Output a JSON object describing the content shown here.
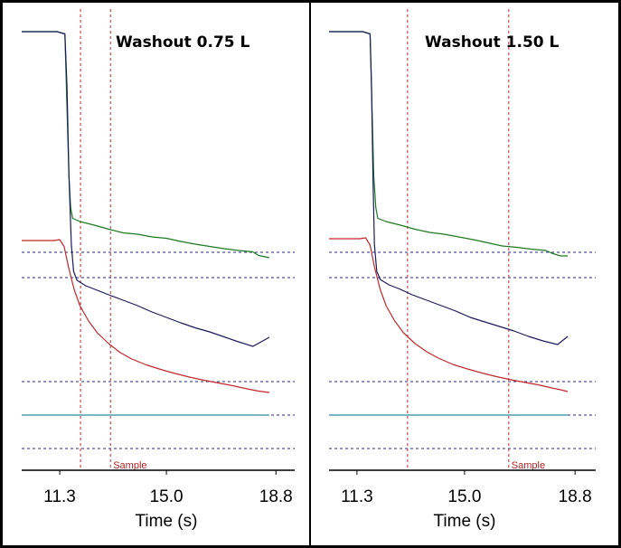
{
  "chart_data": [
    {
      "type": "line",
      "title": "Washout 0.75 L",
      "xlabel": "Time (s)",
      "ylabel": "",
      "xlim": [
        9.98,
        19.45
      ],
      "ylim": [
        0,
        100
      ],
      "xticks": [
        11.3,
        15.0,
        18.8
      ],
      "xtick_labels": [
        "11.3",
        "15.0",
        "18.8"
      ],
      "grid": false,
      "reference_lines_h": [
        48.2,
        42.6,
        19.6,
        12.2,
        4.8
      ],
      "markers_v": [
        {
          "x": 12.02,
          "label": ""
        },
        {
          "x": 13.06,
          "label": "Sample"
        }
      ],
      "series": [
        {
          "name": "green",
          "color": "#1e7a1e",
          "x": [
            9.98,
            11.2,
            11.48,
            11.55,
            11.62,
            11.68,
            11.75,
            12.0,
            12.5,
            13.0,
            13.5,
            14.0,
            14.5,
            15.0,
            15.5,
            16.0,
            16.5,
            17.0,
            17.5,
            18.0,
            18.2,
            18.57
          ],
          "y": [
            97.0,
            97.0,
            96.5,
            80.0,
            65.0,
            58.0,
            55.7,
            55.0,
            54.2,
            53.3,
            52.5,
            52.2,
            51.6,
            51.3,
            50.6,
            50.0,
            49.5,
            49.0,
            48.6,
            48.3,
            47.5,
            47.0
          ]
        },
        {
          "name": "navy",
          "color": "#1a1a5e",
          "x": [
            9.98,
            11.2,
            11.48,
            11.55,
            11.62,
            11.7,
            11.78,
            11.9,
            12.2,
            12.6,
            13.0,
            13.5,
            14.0,
            14.5,
            15.0,
            15.5,
            16.0,
            16.5,
            17.0,
            17.5,
            18.0,
            18.57
          ],
          "y": [
            97.0,
            97.0,
            96.5,
            85.0,
            65.0,
            50.0,
            44.0,
            42.0,
            40.8,
            39.8,
            38.8,
            37.6,
            36.4,
            35.0,
            33.8,
            32.6,
            31.5,
            30.6,
            29.5,
            28.4,
            27.4,
            29.4
          ]
        },
        {
          "name": "red",
          "color": "#c0282c",
          "x": [
            9.98,
            11.1,
            11.3,
            11.45,
            11.6,
            11.8,
            12.0,
            12.3,
            12.6,
            13.0,
            13.4,
            13.8,
            14.3,
            14.8,
            15.3,
            15.8,
            16.3,
            16.8,
            17.3,
            17.8,
            18.2,
            18.57
          ],
          "y": [
            50.8,
            50.8,
            51.0,
            49.5,
            45.0,
            40.0,
            36.4,
            33.0,
            30.4,
            28.0,
            26.0,
            24.6,
            23.3,
            22.3,
            21.4,
            20.6,
            19.9,
            19.3,
            18.7,
            18.0,
            17.5,
            17.2
          ]
        },
        {
          "name": "teal",
          "color": "#2e8b9a",
          "x": [
            9.98,
            18.57
          ],
          "y": [
            12.2,
            12.2
          ]
        }
      ]
    },
    {
      "type": "line",
      "title": "Washout 1.50 L",
      "xlabel": "Time (s)",
      "ylabel": "",
      "xlim": [
        10.34,
        19.51
      ],
      "ylim": [
        0,
        100
      ],
      "xticks": [
        11.3,
        15.0,
        18.8
      ],
      "xtick_labels": [
        "11.3",
        "15.0",
        "18.8"
      ],
      "grid": false,
      "reference_lines_h": [
        48.2,
        42.6,
        19.6,
        12.2,
        4.8
      ],
      "markers_v": [
        {
          "x": 13.04,
          "label": ""
        },
        {
          "x": 16.52,
          "label": "Sample"
        }
      ],
      "series": [
        {
          "name": "green",
          "color": "#1e7a1e",
          "x": [
            10.34,
            11.5,
            11.75,
            11.82,
            11.88,
            11.95,
            12.02,
            12.3,
            12.8,
            13.3,
            13.8,
            14.3,
            14.8,
            15.3,
            15.8,
            16.3,
            16.8,
            17.3,
            17.8,
            18.0,
            18.3,
            18.55
          ],
          "y": [
            97.0,
            97.0,
            96.5,
            80.0,
            65.0,
            58.0,
            55.7,
            55.0,
            54.2,
            53.3,
            52.6,
            52.2,
            51.6,
            51.0,
            50.3,
            49.6,
            49.3,
            48.9,
            48.6,
            48.0,
            47.4,
            47.4
          ]
        },
        {
          "name": "navy",
          "color": "#1a1a5e",
          "x": [
            10.34,
            11.5,
            11.75,
            11.8,
            11.85,
            11.9,
            11.98,
            12.1,
            12.4,
            12.8,
            13.2,
            13.7,
            14.2,
            14.7,
            15.2,
            15.7,
            16.2,
            16.7,
            17.2,
            17.7,
            18.2,
            18.55
          ],
          "y": [
            97.0,
            97.0,
            96.5,
            85.0,
            65.0,
            50.0,
            44.0,
            42.2,
            41.0,
            40.0,
            38.8,
            37.6,
            36.4,
            35.2,
            33.8,
            32.8,
            31.8,
            30.8,
            29.6,
            28.6,
            27.8,
            29.6
          ]
        },
        {
          "name": "red",
          "color": "#c0282c",
          "x": [
            10.34,
            11.4,
            11.6,
            11.75,
            11.9,
            12.1,
            12.3,
            12.6,
            12.9,
            13.3,
            13.7,
            14.1,
            14.6,
            15.1,
            15.6,
            16.1,
            16.6,
            17.1,
            17.6,
            18.0,
            18.3,
            18.55
          ],
          "y": [
            51.2,
            51.2,
            51.4,
            49.8,
            45.0,
            40.0,
            36.4,
            33.0,
            30.4,
            28.0,
            26.2,
            24.8,
            23.4,
            22.4,
            21.5,
            20.7,
            20.0,
            19.4,
            18.8,
            18.2,
            17.8,
            17.4
          ]
        },
        {
          "name": "teal",
          "color": "#2e8b9a",
          "x": [
            10.34,
            18.55
          ],
          "y": [
            12.2,
            12.2
          ]
        }
      ]
    }
  ]
}
